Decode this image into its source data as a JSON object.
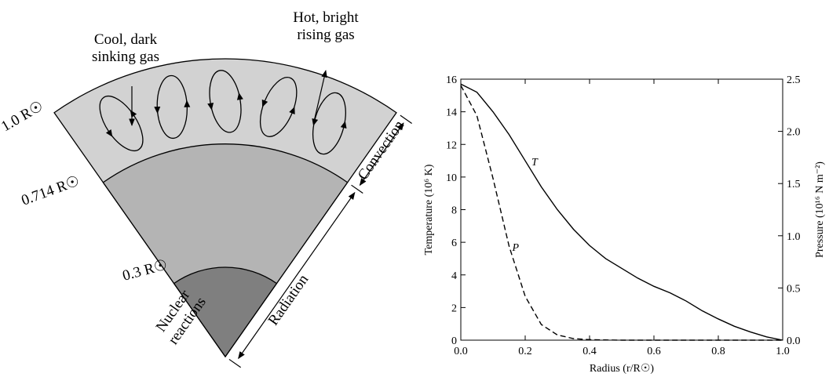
{
  "diagram": {
    "labels": {
      "cool": [
        "Cool, dark",
        "sinking gas"
      ],
      "hot": [
        "Hot, bright",
        "rising gas"
      ],
      "r100": "1.0 R☉",
      "r0714": "0.714 R☉",
      "r03": "0.3 R☉",
      "nuclear": [
        "Nuclear",
        "reactions"
      ],
      "convection": "Convection",
      "radiation": "Radiation"
    }
  },
  "chart_data": {
    "type": "line",
    "xlabel": "Radius (r/R☉)",
    "ylabel": "Temperature (10⁶ K)",
    "y2label": "Pressure (10¹⁶ N m⁻²)",
    "x": [
      0,
      0.05,
      0.1,
      0.15,
      0.2,
      0.25,
      0.3,
      0.35,
      0.4,
      0.45,
      0.5,
      0.55,
      0.6,
      0.65,
      0.7,
      0.75,
      0.8,
      0.85,
      0.9,
      0.95,
      1.0
    ],
    "series": [
      {
        "name": "T",
        "color": "#000000",
        "values": [
          15.7,
          15.2,
          14.0,
          12.6,
          11.0,
          9.4,
          8.0,
          6.8,
          5.8,
          5.0,
          4.4,
          3.8,
          3.3,
          2.9,
          2.4,
          1.8,
          1.3,
          0.85,
          0.5,
          0.2,
          0
        ]
      },
      {
        "name": "P",
        "color": "#000000",
        "dashed": true,
        "axis": "y2",
        "values": [
          2.44,
          2.15,
          1.55,
          0.9,
          0.42,
          0.15,
          0.05,
          0.015,
          0.005,
          0.002,
          0,
          0,
          0,
          0,
          0,
          0,
          0,
          0,
          0,
          0,
          0
        ]
      }
    ],
    "xlim": [
      0,
      1
    ],
    "ylim": [
      0,
      16
    ],
    "y2lim": [
      0,
      2.5
    ],
    "xticks": [
      {
        "value": 0,
        "label": "0.0"
      },
      0.2,
      0.4,
      0.6,
      0.8,
      {
        "value": 1,
        "label": "1.0"
      }
    ],
    "yticks": [
      0,
      2,
      4,
      6,
      8,
      10,
      12,
      14,
      16
    ],
    "y2ticks": [
      {
        "value": 0,
        "label": "0.0"
      },
      0.5,
      {
        "value": 1,
        "label": "1.0"
      },
      1.5,
      {
        "value": 2,
        "label": "2.0"
      },
      2.5
    ]
  }
}
